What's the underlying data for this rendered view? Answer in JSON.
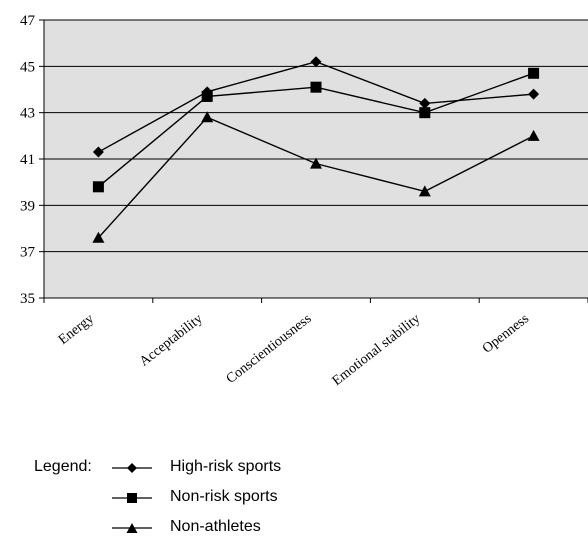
{
  "chart_data": {
    "type": "line",
    "categories": [
      "Energy",
      "Acceptability",
      "Conscientiousness",
      "Emotional stability",
      "Openness"
    ],
    "ylim": [
      35,
      47
    ],
    "yticks": [
      35,
      37,
      39,
      41,
      43,
      45,
      47
    ],
    "grid": true,
    "plot_background": "#e0e0e0",
    "series": [
      {
        "name": "High-risk sports",
        "marker": "diamond",
        "values": [
          41.3,
          43.9,
          45.2,
          43.4,
          43.8
        ]
      },
      {
        "name": "Non-risk sports",
        "marker": "square",
        "values": [
          39.8,
          43.7,
          44.1,
          43.0,
          44.7
        ]
      },
      {
        "name": "Non-athletes",
        "marker": "triangle",
        "values": [
          37.6,
          42.8,
          40.8,
          39.6,
          42.0
        ]
      }
    ],
    "legend": {
      "title": "Legend:",
      "placement": "bottom-left"
    }
  }
}
